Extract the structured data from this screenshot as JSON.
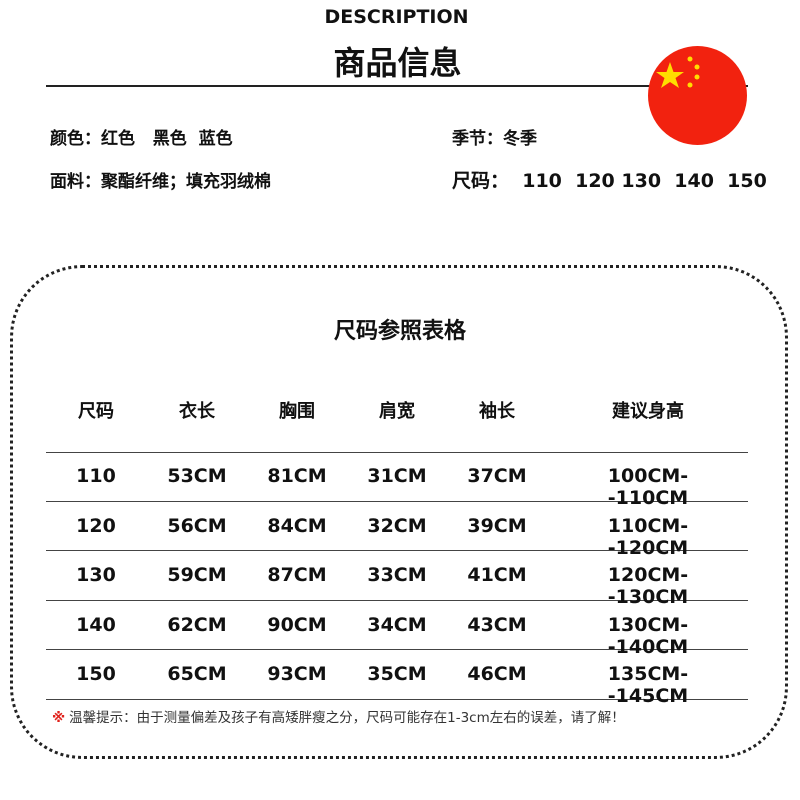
{
  "header": {
    "subtitle": "DESCRIPTION",
    "title": "商品信息"
  },
  "flag": {
    "name": "china-flag-icon",
    "colors": {
      "red": "#f2220f",
      "star": "#ffde00"
    }
  },
  "info": {
    "color": "颜色：红色   黑色  蓝色",
    "material": "面料：聚酯纤维；填充羽绒棉",
    "season": "季节：冬季",
    "sizes": "尺码：  110  120 130  140  150"
  },
  "table": {
    "title": "尺码参照表格",
    "headers": [
      "尺码",
      "衣长",
      "胸围",
      "肩宽",
      "袖长",
      "建议身高"
    ],
    "rows": [
      [
        "110",
        "53CM",
        "81CM",
        "31CM",
        "37CM",
        "100CM--110CM"
      ],
      [
        "120",
        "56CM",
        "84CM",
        "32CM",
        "39CM",
        "110CM--120CM"
      ],
      [
        "130",
        "59CM",
        "87CM",
        "33CM",
        "41CM",
        "120CM--130CM"
      ],
      [
        "140",
        "62CM",
        "90CM",
        "34CM",
        "43CM",
        "130CM--140CM"
      ],
      [
        "150",
        "65CM",
        "93CM",
        "35CM",
        "46CM",
        "135CM--145CM"
      ]
    ]
  },
  "note": {
    "mark": "※",
    "text": "温馨提示：由于测量偏差及孩子有高矮胖瘦之分，尺码可能存在1-3cm左右的误差，请了解！"
  }
}
